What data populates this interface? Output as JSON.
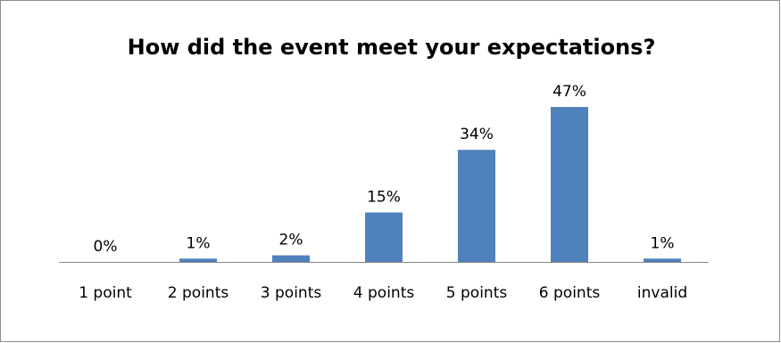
{
  "chart_data": {
    "type": "bar",
    "title": "How did the event meet your expectations?",
    "categories": [
      "1 point",
      "2 points",
      "3 points",
      "4 points",
      "5 points",
      "6 points",
      "invalid"
    ],
    "values": [
      0,
      1,
      2,
      15,
      34,
      47,
      1
    ],
    "data_labels": [
      "0%",
      "1%",
      "2%",
      "15%",
      "34%",
      "47%",
      "1%"
    ],
    "unit": "%",
    "xlabel": "",
    "ylabel": "",
    "ylim": [
      0,
      50
    ],
    "grid": false,
    "legend": "none",
    "bar_color": "#4f81bd",
    "axis_color": "#868686"
  }
}
